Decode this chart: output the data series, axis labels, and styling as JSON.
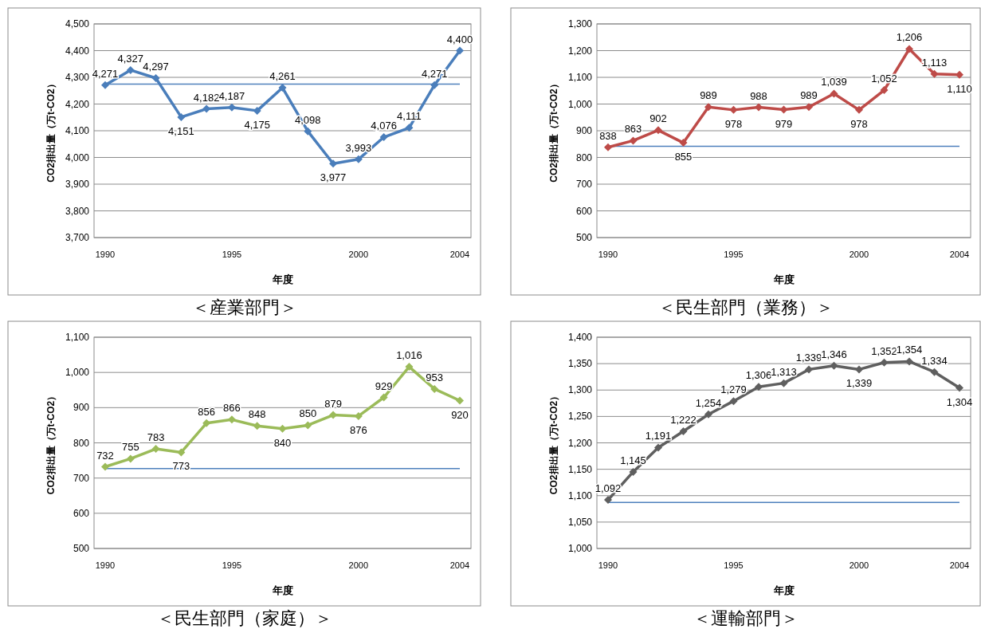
{
  "chart_data": [
    {
      "type": "line",
      "title": "＜産業部門＞",
      "xlabel": "年度",
      "ylabel": "CO2排出量（万t-CO2）",
      "categories": [
        "1990",
        null,
        null,
        null,
        null,
        "1995",
        null,
        null,
        null,
        null,
        "2000",
        null,
        null,
        null,
        "2004"
      ],
      "series": [
        {
          "color": "#4a7ebb",
          "values": [
            4271,
            4327,
            4297,
            4151,
            4182,
            4187,
            4175,
            4261,
            4098,
            3977,
            3993,
            4076,
            4111,
            4271,
            4400
          ],
          "value_labels": [
            "4,271",
            "4,327",
            "4,297",
            "4,151",
            "4,182",
            "4,187",
            "4,175",
            "4,261",
            "4,098",
            "3,977",
            "3,993",
            "4,076",
            "4,111",
            "4,271",
            "4,400"
          ]
        }
      ],
      "ylim": [
        3700,
        4500
      ],
      "yticks": [
        {
          "value": 3700,
          "label": "3,700"
        },
        {
          "value": 3800,
          "label": "3,800"
        },
        {
          "value": 3900,
          "label": "3,900"
        },
        {
          "value": 4000,
          "label": "4,000"
        },
        {
          "value": 4100,
          "label": "4,100"
        },
        {
          "value": 4200,
          "label": "4,200"
        },
        {
          "value": 4300,
          "label": "4,300"
        },
        {
          "value": 4400,
          "label": "4,400"
        },
        {
          "value": 4500,
          "label": "4,500"
        }
      ],
      "grid": "y",
      "marker": "diamond",
      "ref_lines": [
        {
          "axis": "y",
          "value": 4275,
          "color": "#4f81bd"
        }
      ]
    },
    {
      "type": "line",
      "title": "＜民生部門（業務）＞",
      "xlabel": "年度",
      "ylabel": "CO2排出量（万t-CO2）",
      "categories": [
        "1990",
        null,
        null,
        null,
        null,
        "1995",
        null,
        null,
        null,
        null,
        "2000",
        null,
        null,
        null,
        "2004"
      ],
      "series": [
        {
          "color": "#be4b48",
          "values": [
            838,
            863,
            902,
            855,
            989,
            978,
            988,
            979,
            989,
            1039,
            978,
            1052,
            1206,
            1113,
            1110
          ],
          "value_labels": [
            "838",
            "863",
            "902",
            "855",
            "989",
            "978",
            "988",
            "979",
            "989",
            "1,039",
            "978",
            "1,052",
            "1,206",
            "1,113",
            "1,110"
          ]
        }
      ],
      "ylim": [
        500,
        1300
      ],
      "yticks": [
        500,
        600,
        700,
        800,
        900,
        {
          "value": 1000,
          "label": "1,000"
        },
        {
          "value": 1100,
          "label": "1,100"
        },
        {
          "value": 1200,
          "label": "1,200"
        },
        {
          "value": 1300,
          "label": "1,300"
        }
      ],
      "grid": "y",
      "marker": "diamond",
      "ref_lines": [
        {
          "axis": "y",
          "value": 842,
          "color": "#4f81bd"
        }
      ]
    },
    {
      "type": "line",
      "title": "＜民生部門（家庭）＞",
      "xlabel": "年度",
      "ylabel": "CO2排出量（万t-CO2）",
      "categories": [
        "1990",
        null,
        null,
        null,
        null,
        "1995",
        null,
        null,
        null,
        null,
        "2000",
        null,
        null,
        null,
        "2004"
      ],
      "series": [
        {
          "color": "#9bbb59",
          "values": [
            732,
            755,
            783,
            773,
            856,
            866,
            848,
            840,
            850,
            879,
            876,
            929,
            1016,
            953,
            920
          ],
          "value_labels": [
            "732",
            "755",
            "783",
            "773",
            "856",
            "866",
            "848",
            "840",
            "850",
            "879",
            "876",
            "929",
            "1,016",
            "953",
            "920"
          ]
        }
      ],
      "ylim": [
        500,
        1100
      ],
      "yticks": [
        500,
        600,
        700,
        800,
        900,
        {
          "value": 1000,
          "label": "1,000"
        },
        {
          "value": 1100,
          "label": "1,100"
        }
      ],
      "grid": "y",
      "marker": "diamond",
      "ref_lines": [
        {
          "axis": "y",
          "value": 727,
          "color": "#4f81bd"
        }
      ]
    },
    {
      "type": "line",
      "title": "＜運輸部門＞",
      "xlabel": "年度",
      "ylabel": "CO2排出量（万t-CO2）",
      "categories": [
        "1990",
        null,
        null,
        null,
        null,
        "1995",
        null,
        null,
        null,
        null,
        "2000",
        null,
        null,
        null,
        "2004"
      ],
      "series": [
        {
          "color": "#5f5f5f",
          "values": [
            1092,
            1145,
            1191,
            1222,
            1254,
            1279,
            1306,
            1313,
            1339,
            1346,
            1339,
            1352,
            1354,
            1334,
            1304
          ],
          "value_labels": [
            "1,092",
            "1,145",
            "1,191",
            "1,222",
            "1,254",
            "1,279",
            "1,306",
            "1,313",
            "1,339",
            "1,346",
            "1,339",
            "1,352",
            "1,354",
            "1,334",
            "1,304"
          ]
        }
      ],
      "ylim": [
        1000,
        1400
      ],
      "yticks": [
        {
          "value": 1000,
          "label": "1,000"
        },
        {
          "value": 1050,
          "label": "1,050"
        },
        {
          "value": 1100,
          "label": "1,100"
        },
        {
          "value": 1150,
          "label": "1,150"
        },
        {
          "value": 1200,
          "label": "1,200"
        },
        {
          "value": 1250,
          "label": "1,250"
        },
        {
          "value": 1300,
          "label": "1,300"
        },
        {
          "value": 1350,
          "label": "1,350"
        },
        {
          "value": 1400,
          "label": "1,400"
        }
      ],
      "grid": "y",
      "marker": "diamond",
      "ref_lines": [
        {
          "axis": "y",
          "value": 1087,
          "color": "#4f81bd"
        }
      ]
    }
  ]
}
